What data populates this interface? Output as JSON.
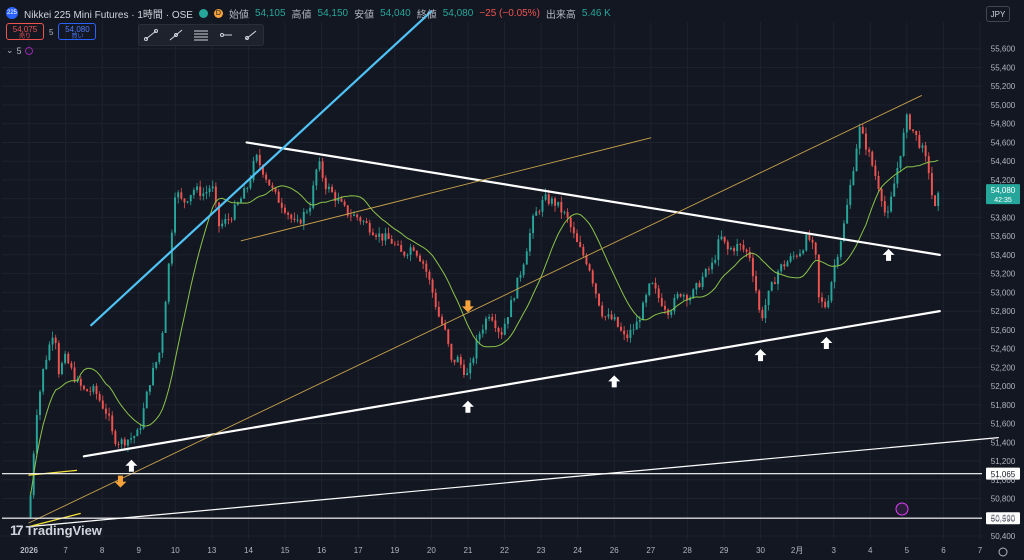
{
  "header": {
    "symbol_badge": "225",
    "title": "Nikkei 225 Mini Futures · 1時間 · OSE",
    "status_d": "D",
    "open_label": "始値",
    "open": "54,105",
    "high_label": "高値",
    "high": "54,150",
    "low_label": "安値",
    "low": "54,040",
    "close_label": "終値",
    "close": "54,080",
    "change": "−25 (−0.05%)",
    "volume_label": "出来高",
    "volume": "5.46 K"
  },
  "trade": {
    "sell_price": "54,075",
    "sell_label": "売り",
    "spread": "5",
    "buy_price": "54,080",
    "buy_label": "買い"
  },
  "indicator": {
    "count": "5"
  },
  "currency": "JPY",
  "branding": "TradingView",
  "chart_data": {
    "type": "candlestick",
    "y_axis": {
      "range": [
        50400,
        55800
      ],
      "ticks": [
        "55,600",
        "55,400",
        "55,200",
        "55,000",
        "54,800",
        "54,600",
        "54,400",
        "54,200",
        "54,000",
        "53,800",
        "53,600",
        "53,400",
        "53,200",
        "53,000",
        "52,800",
        "52,600",
        "52,400",
        "52,200",
        "52,000",
        "51,800",
        "51,600",
        "51,400",
        "51,200",
        "51,000",
        "50,800",
        "50,600",
        "50,400"
      ]
    },
    "x_axis": {
      "labels": [
        {
          "t": "2026",
          "x": 0
        },
        {
          "t": "7",
          "x": 1
        },
        {
          "t": "8",
          "x": 2
        },
        {
          "t": "9",
          "x": 3
        },
        {
          "t": "10",
          "x": 4
        },
        {
          "t": "13",
          "x": 5
        },
        {
          "t": "14",
          "x": 6
        },
        {
          "t": "15",
          "x": 7
        },
        {
          "t": "16",
          "x": 8
        },
        {
          "t": "17",
          "x": 9
        },
        {
          "t": "19",
          "x": 10
        },
        {
          "t": "20",
          "x": 11
        },
        {
          "t": "21",
          "x": 12
        },
        {
          "t": "22",
          "x": 13
        },
        {
          "t": "23",
          "x": 14
        },
        {
          "t": "24",
          "x": 15
        },
        {
          "t": "26",
          "x": 16
        },
        {
          "t": "27",
          "x": 17
        },
        {
          "t": "28",
          "x": 18
        },
        {
          "t": "29",
          "x": 19
        },
        {
          "t": "30",
          "x": 20
        },
        {
          "t": "2月",
          "x": 21
        },
        {
          "t": "3",
          "x": 22
        },
        {
          "t": "4",
          "x": 23
        },
        {
          "t": "5",
          "x": 24
        },
        {
          "t": "6",
          "x": 25
        },
        {
          "t": "7",
          "x": 26
        }
      ]
    },
    "last_price": {
      "value": 54080,
      "label": "54,080",
      "countdown": "42:35"
    },
    "key_levels": [
      {
        "value": 51065,
        "label": "51,065"
      },
      {
        "value": 50590,
        "label": "50,590"
      }
    ],
    "close_path": [
      [
        0.0,
        50600
      ],
      [
        0.2,
        51700
      ],
      [
        0.4,
        52200
      ],
      [
        0.7,
        52650
      ],
      [
        0.8,
        52150
      ],
      [
        1.0,
        52300
      ],
      [
        1.3,
        52050
      ],
      [
        1.5,
        51950
      ],
      [
        1.8,
        51950
      ],
      [
        2.0,
        51800
      ],
      [
        2.15,
        51700
      ],
      [
        2.3,
        51450
      ],
      [
        2.5,
        51400
      ],
      [
        2.8,
        51450
      ],
      [
        3.0,
        51500
      ],
      [
        3.3,
        52050
      ],
      [
        3.6,
        52400
      ],
      [
        3.8,
        53200
      ],
      [
        4.0,
        54100
      ],
      [
        4.2,
        53950
      ],
      [
        4.5,
        54100
      ],
      [
        4.8,
        54050
      ],
      [
        5.0,
        54150
      ],
      [
        5.2,
        53700
      ],
      [
        5.5,
        53800
      ],
      [
        5.8,
        54000
      ],
      [
        6.0,
        54150
      ],
      [
        6.2,
        54450
      ],
      [
        6.4,
        54300
      ],
      [
        6.7,
        54050
      ],
      [
        7.0,
        53900
      ],
      [
        7.3,
        53700
      ],
      [
        7.7,
        53950
      ],
      [
        7.9,
        54400
      ],
      [
        8.1,
        54150
      ],
      [
        8.4,
        54000
      ],
      [
        8.7,
        53850
      ],
      [
        9.0,
        53800
      ],
      [
        9.3,
        53700
      ],
      [
        9.6,
        53600
      ],
      [
        9.9,
        53550
      ],
      [
        10.2,
        53400
      ],
      [
        10.5,
        53500
      ],
      [
        10.8,
        53300
      ],
      [
        11.0,
        53050
      ],
      [
        11.2,
        52750
      ],
      [
        11.4,
        52550
      ],
      [
        11.55,
        52250
      ],
      [
        11.7,
        52300
      ],
      [
        11.85,
        52200
      ],
      [
        12.0,
        52100
      ],
      [
        12.3,
        52550
      ],
      [
        12.6,
        52800
      ],
      [
        12.9,
        52550
      ],
      [
        13.2,
        52900
      ],
      [
        13.5,
        53300
      ],
      [
        13.8,
        53800
      ],
      [
        14.1,
        54000
      ],
      [
        14.4,
        53950
      ],
      [
        14.7,
        53800
      ],
      [
        15.0,
        53500
      ],
      [
        15.3,
        53300
      ],
      [
        15.5,
        53000
      ],
      [
        15.7,
        52750
      ],
      [
        16.0,
        52700
      ],
      [
        16.3,
        52500
      ],
      [
        16.6,
        52650
      ],
      [
        16.8,
        52850
      ],
      [
        17.0,
        53100
      ],
      [
        17.2,
        52950
      ],
      [
        17.5,
        52800
      ],
      [
        17.8,
        53000
      ],
      [
        18.1,
        52950
      ],
      [
        18.4,
        53150
      ],
      [
        18.7,
        53300
      ],
      [
        18.9,
        53600
      ],
      [
        19.1,
        53450
      ],
      [
        19.4,
        53500
      ],
      [
        19.7,
        53400
      ],
      [
        19.85,
        53100
      ],
      [
        20.0,
        52700
      ],
      [
        20.2,
        52950
      ],
      [
        20.5,
        53250
      ],
      [
        20.8,
        53350
      ],
      [
        21.1,
        53450
      ],
      [
        21.3,
        53600
      ],
      [
        21.5,
        53400
      ],
      [
        21.6,
        52900
      ],
      [
        21.8,
        52850
      ],
      [
        22.0,
        53250
      ],
      [
        22.3,
        53750
      ],
      [
        22.5,
        54250
      ],
      [
        22.7,
        54750
      ],
      [
        22.9,
        54550
      ],
      [
        23.1,
        54300
      ],
      [
        23.3,
        54050
      ],
      [
        23.45,
        53750
      ],
      [
        23.6,
        54050
      ],
      [
        23.8,
        54450
      ],
      [
        24.0,
        54850
      ],
      [
        24.2,
        54700
      ],
      [
        24.4,
        54550
      ],
      [
        24.6,
        54300
      ],
      [
        24.75,
        53850
      ],
      [
        24.9,
        54080
      ]
    ],
    "moving_averages": [
      {
        "name": "",
        "color": "#8bc34a",
        "period": 16
      },
      {
        "name": "",
        "color": "#ffc107",
        "period": 1
      }
    ],
    "trendlines": [
      {
        "type": "resistance",
        "color": "#ffffff",
        "width": 2.2,
        "points": [
          [
            5.95,
            54600
          ],
          [
            24.9,
            53400
          ]
        ]
      },
      {
        "type": "support",
        "color": "#ffffff",
        "width": 2.2,
        "points": [
          [
            1.5,
            51250
          ],
          [
            24.9,
            52800
          ]
        ]
      },
      {
        "type": "channel",
        "color": "#ffffff",
        "width": 1.2,
        "points": [
          [
            0.0,
            50500
          ],
          [
            26.5,
            51450
          ]
        ]
      },
      {
        "type": "channel-top",
        "color": "#4fc3f7",
        "width": 2.2,
        "points": [
          [
            1.7,
            52650
          ],
          [
            11.0,
            56000
          ]
        ]
      },
      {
        "type": "fan",
        "color": "#c8a24c",
        "width": 0.9,
        "points": [
          [
            0.0,
            50540
          ],
          [
            24.4,
            55100
          ]
        ]
      },
      {
        "type": "fan",
        "color": "#c8a24c",
        "width": 0.9,
        "points": [
          [
            5.8,
            53550
          ],
          [
            17.0,
            54650
          ]
        ]
      },
      {
        "type": "start",
        "color": "#f5e13a",
        "width": 1.3,
        "points": [
          [
            0.0,
            51050
          ],
          [
            1.3,
            51100
          ]
        ]
      },
      {
        "type": "start",
        "color": "#f5e13a",
        "width": 1.3,
        "points": [
          [
            0.0,
            50500
          ],
          [
            1.4,
            50640
          ]
        ]
      }
    ],
    "arrows": [
      {
        "x": 2.8,
        "y": 51150,
        "dir": "up",
        "color": "#ffffff"
      },
      {
        "x": 2.5,
        "y": 50980,
        "dir": "down",
        "color": "#f7a23b"
      },
      {
        "x": 12.0,
        "y": 51780,
        "dir": "up",
        "color": "#ffffff"
      },
      {
        "x": 12.0,
        "y": 52850,
        "dir": "down",
        "color": "#f7a23b"
      },
      {
        "x": 16.0,
        "y": 52050,
        "dir": "up",
        "color": "#ffffff"
      },
      {
        "x": 20.0,
        "y": 52330,
        "dir": "up",
        "color": "#ffffff"
      },
      {
        "x": 21.8,
        "y": 52460,
        "dir": "up",
        "color": "#ffffff"
      },
      {
        "x": 23.5,
        "y": 53400,
        "dir": "up",
        "color": "#ffffff"
      }
    ],
    "colors": {
      "up": "#26a69a",
      "down": "#ef5350",
      "grid": "#1e222d",
      "axis_text": "#b2b5be",
      "last_price_bg": "#26a69a"
    }
  }
}
